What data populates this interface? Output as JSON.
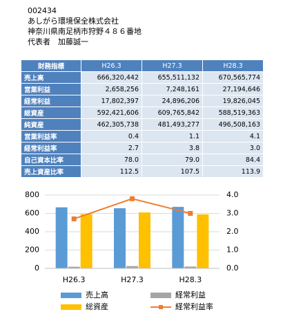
{
  "header": {
    "code": "002434",
    "company": "あしがら環境保全株式会社",
    "address": "神奈川県南足柄市狩野４８６番地",
    "representative": "代表者　加藤誠一"
  },
  "table": {
    "columns": [
      "財務指標",
      "H26.3",
      "H27.3",
      "H28.3"
    ],
    "rows": [
      [
        "売上高",
        "666,320,442",
        "655,511,132",
        "670,565,774"
      ],
      [
        "営業利益",
        "2,658,256",
        "7,248,161",
        "27,194,646"
      ],
      [
        "経常利益",
        "17,802,397",
        "24,896,206",
        "19,826,045"
      ],
      [
        "総資産",
        "592,421,606",
        "609,765,842",
        "588,519,363"
      ],
      [
        "純資産",
        "462,305,738",
        "481,493,277",
        "496,508,163"
      ],
      [
        "営業利益率",
        "0.4",
        "1.1",
        "4.1"
      ],
      [
        "経常利益率",
        "2.7",
        "3.8",
        "3.0"
      ],
      [
        "自己資本比率",
        "78.0",
        "79.0",
        "84.4"
      ],
      [
        "売上資産比率",
        "112.5",
        "107.5",
        "113.9"
      ]
    ]
  },
  "chart_data": {
    "type": "bar",
    "categories": [
      "H26.3",
      "H27.3",
      "H28.3"
    ],
    "series": [
      {
        "name": "売上高",
        "color": "#5b9bd5",
        "values": [
          666,
          656,
          671
        ]
      },
      {
        "name": "経常利益",
        "color": "#a5a5a5",
        "values": [
          18,
          25,
          20
        ]
      },
      {
        "name": "総資産",
        "color": "#ffc000",
        "values": [
          592,
          610,
          589
        ]
      },
      {
        "name": "経常利益率",
        "color": "#ed7d31",
        "type": "line",
        "axis": "y2",
        "values": [
          2.7,
          3.8,
          3.0
        ]
      }
    ],
    "ylim": [
      0,
      800
    ],
    "yticks": [
      0,
      200,
      400,
      600,
      800
    ],
    "y2lim": [
      0,
      4
    ],
    "y2ticks": [
      {
        "value": 0,
        "label": "0.0"
      },
      {
        "value": 1,
        "label": "1.0"
      },
      {
        "value": 2,
        "label": "2.0"
      },
      {
        "value": 3,
        "label": "3.0"
      },
      {
        "value": 4,
        "label": "4.0"
      }
    ],
    "grid": true
  }
}
